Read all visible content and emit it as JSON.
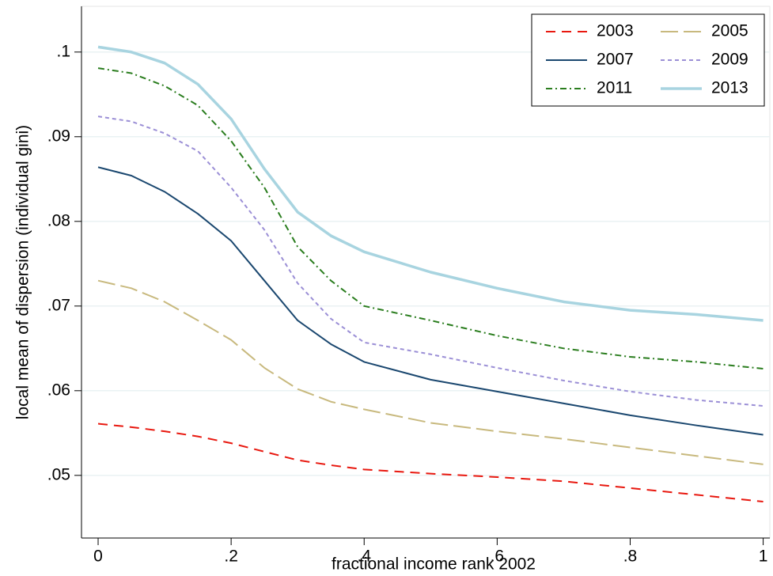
{
  "chart_data": {
    "type": "line",
    "x_label": "fractional income rank 2002",
    "y_label": "local mean of dispersion (individual gini)",
    "x": [
      0,
      0.05,
      0.1,
      0.15,
      0.2,
      0.25,
      0.3,
      0.35,
      0.4,
      0.5,
      0.6,
      0.7,
      0.8,
      0.9,
      1
    ],
    "series": [
      {
        "name": "2003",
        "color": "#e8180f",
        "dash": "12 8",
        "width": 2,
        "values": [
          0.0561,
          0.0557,
          0.0552,
          0.0546,
          0.0538,
          0.0528,
          0.0518,
          0.0512,
          0.0507,
          0.0502,
          0.0498,
          0.0493,
          0.0485,
          0.0477,
          0.0469
        ]
      },
      {
        "name": "2005",
        "color": "#c8b97e",
        "dash": "22 7",
        "width": 2,
        "values": [
          0.073,
          0.0721,
          0.0705,
          0.0683,
          0.066,
          0.0627,
          0.0602,
          0.0587,
          0.0578,
          0.0562,
          0.0552,
          0.0543,
          0.0533,
          0.0523,
          0.0513
        ]
      },
      {
        "name": "2007",
        "color": "#1a476f",
        "dash": "none",
        "width": 2,
        "values": [
          0.0864,
          0.0854,
          0.0835,
          0.0809,
          0.0777,
          0.073,
          0.0683,
          0.0655,
          0.0634,
          0.0613,
          0.0599,
          0.0585,
          0.0571,
          0.0559,
          0.0548
        ]
      },
      {
        "name": "2009",
        "color": "#9b8fd6",
        "dash": "5 4",
        "width": 2,
        "values": [
          0.0924,
          0.0918,
          0.0904,
          0.0883,
          0.084,
          0.079,
          0.0727,
          0.0685,
          0.0657,
          0.0643,
          0.0627,
          0.0612,
          0.0599,
          0.0589,
          0.0582
        ]
      },
      {
        "name": "2011",
        "color": "#2a7d1e",
        "dash": "8 4 2 4",
        "width": 2,
        "values": [
          0.0981,
          0.0975,
          0.096,
          0.0937,
          0.0895,
          0.084,
          0.077,
          0.073,
          0.07,
          0.0683,
          0.0665,
          0.065,
          0.064,
          0.0634,
          0.0626
        ]
      },
      {
        "name": "2013",
        "color": "#a8d4e0",
        "dash": "none",
        "width": 3.5,
        "values": [
          0.1006,
          0.1,
          0.0987,
          0.0962,
          0.0921,
          0.0862,
          0.0811,
          0.0783,
          0.0764,
          0.074,
          0.0721,
          0.0705,
          0.0695,
          0.069,
          0.0683
        ]
      }
    ],
    "xlim": [
      -0.025,
      1.01
    ],
    "ylim": [
      0.0426,
      0.1054
    ],
    "xticks": [
      0,
      {
        "value": 0.2,
        "label": ".2"
      },
      {
        "value": 0.4,
        "label": ".4"
      },
      {
        "value": 0.6,
        "label": ".6"
      },
      {
        "value": 0.8,
        "label": ".8"
      },
      1
    ],
    "yticks": [
      {
        "value": 0.05,
        "label": ".05"
      },
      {
        "value": 0.06,
        "label": ".06"
      },
      {
        "value": 0.07,
        "label": ".07"
      },
      {
        "value": 0.08,
        "label": ".08"
      },
      {
        "value": 0.09,
        "label": ".09"
      },
      {
        "value": 0.1,
        "label": ".1"
      }
    ],
    "grid": true,
    "legend": "top-right",
    "legend_columns": 2
  }
}
